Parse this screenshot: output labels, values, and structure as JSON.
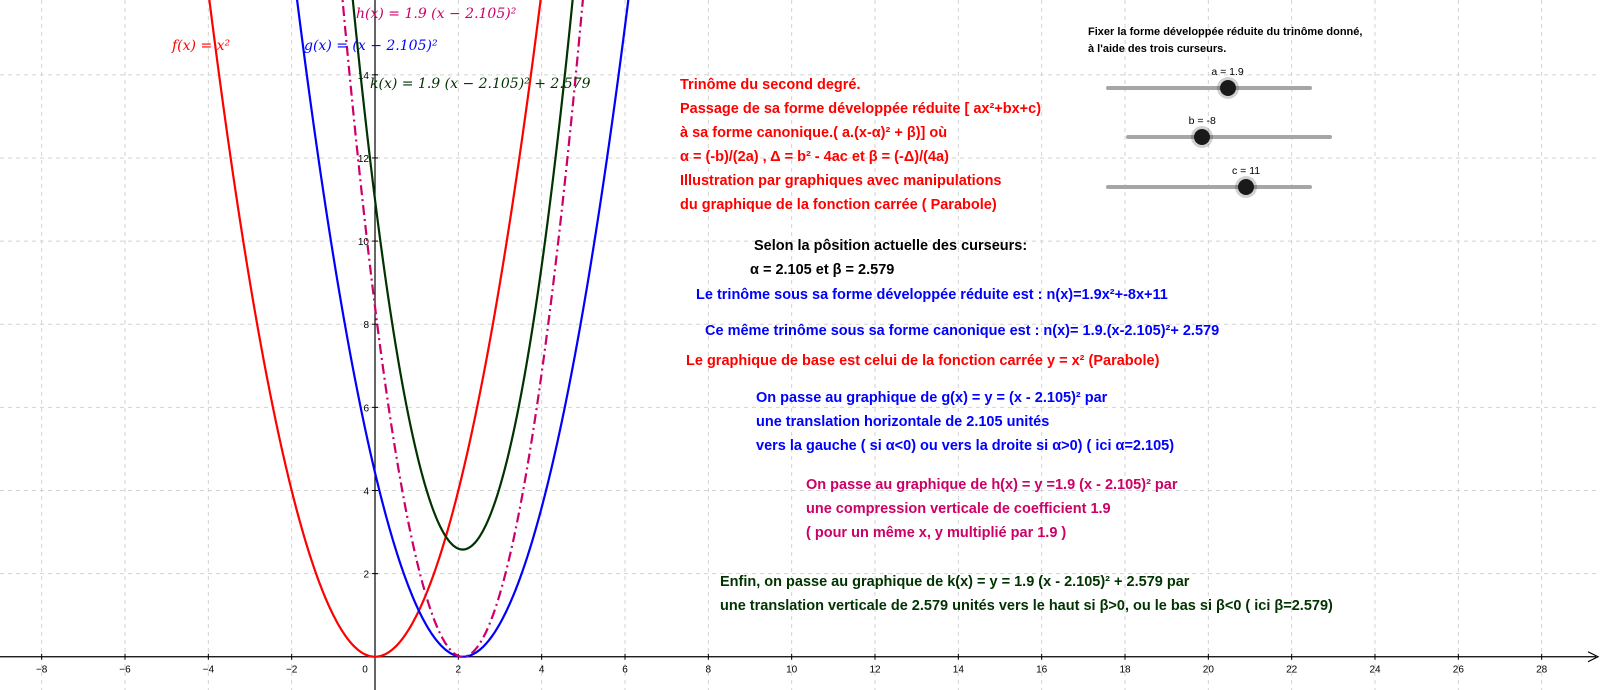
{
  "colors": {
    "f": "#ff0000",
    "g": "#0000ff",
    "h": "#cc0066",
    "k": "#003300",
    "red_text": "#ff0000",
    "blue_text": "#0000ff",
    "magenta_text": "#cc0066",
    "green_text": "#003300",
    "axis": "#000000",
    "grid": "#d2d2d2"
  },
  "graph": {
    "x_range": [
      -9,
      29.4
    ],
    "y_range": [
      -0.8,
      15.8
    ],
    "x_ticks": [
      -8,
      -6,
      -4,
      -2,
      0,
      2,
      4,
      6,
      8,
      10,
      12,
      14,
      16,
      18,
      20,
      22,
      24,
      26,
      28
    ],
    "y_ticks": [
      2,
      4,
      6,
      8,
      10,
      12,
      14
    ]
  },
  "curve_labels": {
    "f": "f(x) = x²",
    "g": "g(x) = (x − 2.105)²",
    "h": "h(x) = 1.9 (x − 2.105)²",
    "k": "k(x) = 1.9 (x − 2.105)² + 2.579"
  },
  "params": {
    "a": 1.9,
    "alpha": 2.105,
    "beta": 2.579
  },
  "title_block": [
    "Trinôme du second degré.",
    "Passage de sa forme développée réduite [ ax²+bx+c)",
    " à sa forme canonique.( a.(x-α)² + β)] où",
    "α = (-b)/(2a) , Δ = b² - 4ac et β = (-Δ)/(4a)",
    "Illustration par graphiques avec manipulations",
    "du graphique de la fonction carrée ( Parabole)"
  ],
  "instructions": [
    "Fixer la forme développée réduite du trinôme donné,",
    "à l'aide des trois curseurs."
  ],
  "sliders": [
    {
      "name": "a",
      "label": "a = 1.9",
      "value": 1.9,
      "fraction": 0.59
    },
    {
      "name": "b",
      "label": "b = -8",
      "value": -8,
      "fraction": 0.37
    },
    {
      "name": "c",
      "label": "c = 11",
      "value": 11,
      "fraction": 0.68
    }
  ],
  "position_text": {
    "line1": "Selon la pôsition actuelle des curseurs:",
    "line2": "α = 2.105    et    β = 2.579"
  },
  "developed_form": "Le trinôme sous sa forme développée réduite est : n(x)=1.9x²+-8x+11",
  "canonical_form": "Ce même trinôme sous sa forme canonique est : n(x)= 1.9.(x-2.105)²+ 2.579",
  "base_graph": "Le graphique de base est celui de la fonction carrée y = x² (Parabole)",
  "step_g": [
    "On passe au graphique de g(x) =  y = (x - 2.105)² par",
    " une translation horizontale de 2.105 unités",
    " vers la gauche ( si α<0) ou vers la droite si α>0) ( ici α=2.105)"
  ],
  "step_h": [
    "On passe au graphique de h(x) =  y =1.9 (x - 2.105)²   par",
    "une compression verticale de coefficient 1.9",
    "( pour un même x, y multiplié par 1.9 )"
  ],
  "step_k": [
    "Enfin, on passe au graphique de k(x) =  y = 1.9 (x - 2.105)² + 2.579 par",
    " une translation verticale de 2.579 unités vers le haut si β>0, ou le bas si β<0 ( ici β=2.579)"
  ]
}
